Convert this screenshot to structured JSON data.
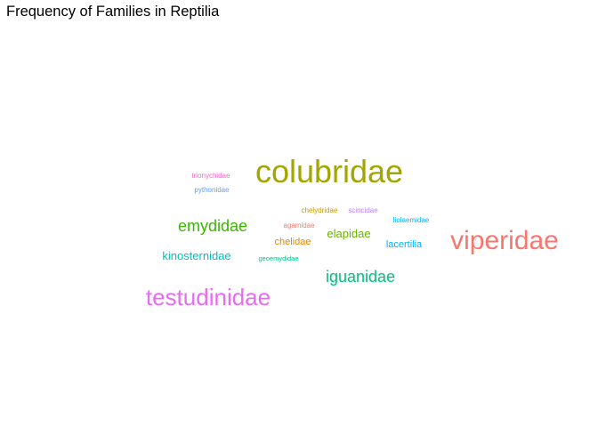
{
  "chart_data": {
    "type": "wordcloud",
    "title": "Frequency of Families in Reptilia",
    "words": [
      {
        "label": "colubridae",
        "color": "#A3A500",
        "weight": 10
      },
      {
        "label": "viperidae",
        "color": "#F8766D",
        "weight": 8
      },
      {
        "label": "testudinidae",
        "color": "#E76BF3",
        "weight": 8
      },
      {
        "label": "iguanidae",
        "color": "#00BF7D",
        "weight": 5
      },
      {
        "label": "emydidae",
        "color": "#39B600",
        "weight": 5
      },
      {
        "label": "elapidae",
        "color": "#6BB100",
        "weight": 4
      },
      {
        "label": "kinosternidae",
        "color": "#00BFC4",
        "weight": 4
      },
      {
        "label": "lacertilia",
        "color": "#00B0F6",
        "weight": 3
      },
      {
        "label": "chelidae",
        "color": "#E58700",
        "weight": 3
      },
      {
        "label": "agamidae",
        "color": "#F8766D",
        "weight": 2
      },
      {
        "label": "chelydridae",
        "color": "#C99800",
        "weight": 2
      },
      {
        "label": "scincidae",
        "color": "#B983FF",
        "weight": 2
      },
      {
        "label": "liolaemidae",
        "color": "#00B0F6",
        "weight": 2
      },
      {
        "label": "trionychidae",
        "color": "#FF61C3",
        "weight": 2
      },
      {
        "label": "pythonidae",
        "color": "#619CFF",
        "weight": 2
      },
      {
        "label": "geoemydidae",
        "color": "#00C08B",
        "weight": 1
      }
    ]
  }
}
